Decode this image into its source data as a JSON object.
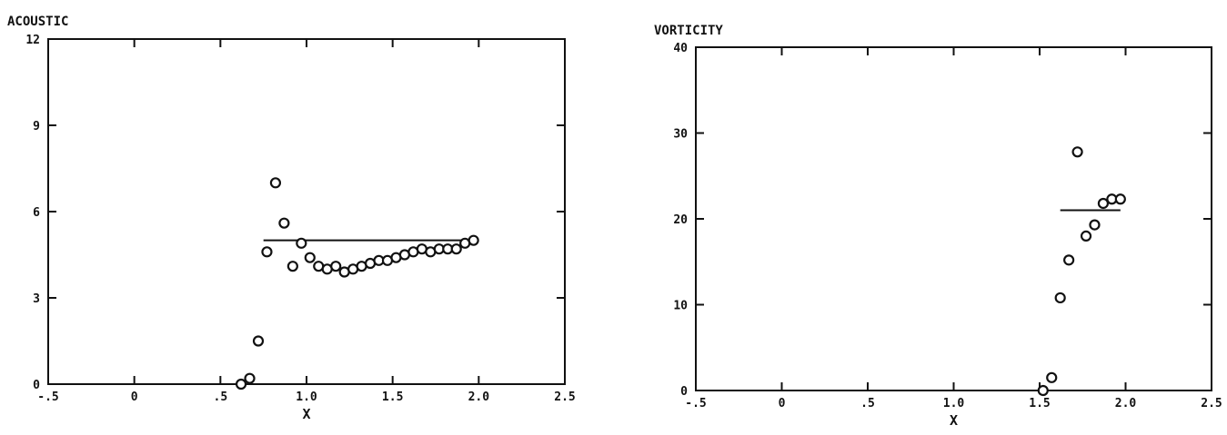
{
  "chart_data": [
    {
      "type": "scatter",
      "ylabel": "ACOUSTIC",
      "xlabel": "X",
      "xlim": [
        -0.5,
        2.5
      ],
      "ylim": [
        0,
        12
      ],
      "x_ticks": [
        -0.5,
        0,
        0.5,
        1.0,
        1.5,
        2.0,
        2.5
      ],
      "x_tick_labels": [
        "-.5",
        "0",
        ".5",
        "1.0",
        "1.5",
        "2.0",
        "2.5"
      ],
      "y_ticks": [
        0,
        3,
        6,
        9,
        12
      ],
      "y_tick_labels": [
        "0",
        "3",
        "6",
        "9",
        "12"
      ],
      "series": [
        {
          "marker": "open-circle",
          "x": [
            0.62,
            0.67,
            0.72,
            0.77,
            0.82,
            0.87,
            0.92,
            0.97,
            1.02,
            1.07,
            1.12,
            1.17,
            1.22,
            1.27,
            1.32,
            1.37,
            1.42,
            1.47,
            1.52,
            1.57,
            1.62,
            1.67,
            1.72,
            1.77,
            1.82,
            1.87,
            1.92,
            1.97
          ],
          "y": [
            0.0,
            0.2,
            1.5,
            4.6,
            7.0,
            5.6,
            4.1,
            4.9,
            4.4,
            4.1,
            4.0,
            4.1,
            3.9,
            4.0,
            4.1,
            4.2,
            4.3,
            4.3,
            4.4,
            4.5,
            4.6,
            4.7,
            4.6,
            4.7,
            4.7,
            4.7,
            4.9,
            5.0
          ]
        }
      ],
      "reference_line": {
        "x": [
          0.75,
          2.0
        ],
        "y": 5.0
      }
    },
    {
      "type": "scatter",
      "ylabel": "VORTICITY",
      "xlabel": "X",
      "xlim": [
        -0.5,
        2.5
      ],
      "ylim": [
        0,
        40
      ],
      "x_ticks": [
        -0.5,
        0,
        0.5,
        1.0,
        1.5,
        2.0,
        2.5
      ],
      "x_tick_labels": [
        "-.5",
        "0",
        ".5",
        "1.0",
        "1.5",
        "2.0",
        "2.5"
      ],
      "y_ticks": [
        0,
        10,
        20,
        30,
        40
      ],
      "y_tick_labels": [
        "0",
        "10",
        "20",
        "30",
        "40"
      ],
      "series": [
        {
          "marker": "open-circle",
          "x": [
            1.52,
            1.57,
            1.62,
            1.67,
            1.72,
            1.77,
            1.82,
            1.87,
            1.92,
            1.97
          ],
          "y": [
            0.0,
            1.5,
            10.8,
            15.2,
            27.8,
            18.0,
            19.3,
            21.8,
            22.3,
            22.3
          ]
        }
      ],
      "reference_line": {
        "x": [
          1.62,
          1.97
        ],
        "y": 21.0
      }
    }
  ]
}
